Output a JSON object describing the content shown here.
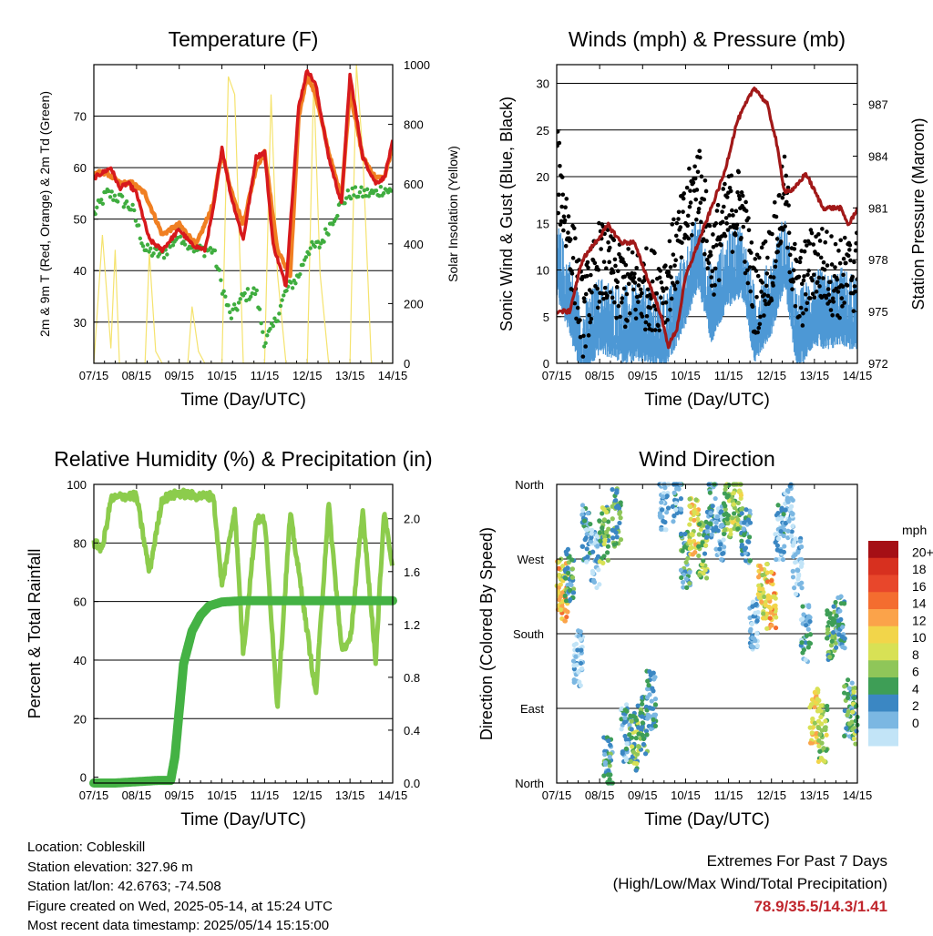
{
  "colors": {
    "temp_2m": "#d7191c",
    "temp_9m": "#f07f22",
    "dewpoint": "#3fad3f",
    "solar": "#f5e36e",
    "wind": "#4d98d5",
    "gust": "#000000",
    "pressure": "#a11818",
    "rh": "#8ccc4c",
    "precip": "#44b244"
  },
  "x_tick_labels": [
    "07/15",
    "08/15",
    "09/15",
    "10/15",
    "11/15",
    "12/15",
    "13/15",
    "14/15"
  ],
  "chart_data": [
    {
      "type": "line",
      "title": "Temperature (F)",
      "xlabel": "Time (Day/UTC)",
      "ylabel": "2m & 9m T (Red, Orange) & 2m Td (Green)",
      "ylabel_right": "Solar Insolation (Yellow)",
      "x": [
        "07/15",
        "08/15",
        "09/15",
        "10/15",
        "11/15",
        "12/15",
        "13/15",
        "14/15"
      ],
      "ylim": [
        22,
        80
      ],
      "yticks": [
        30,
        40,
        50,
        60,
        70
      ],
      "ylim_right": [
        0,
        1000
      ],
      "yticks_right": [
        0,
        200,
        400,
        600,
        800,
        1000
      ],
      "grid": true,
      "series": [
        {
          "key": "t2m",
          "color_key": "temp_2m",
          "x": [
            0,
            0.2,
            0.4,
            0.6,
            0.8,
            1.0,
            1.3,
            1.6,
            2.0,
            2.3,
            2.6,
            2.8,
            3.0,
            3.2,
            3.5,
            3.8,
            4.0,
            4.2,
            4.5,
            4.8,
            5.0,
            5.2,
            5.5,
            5.8,
            6.0,
            6.3,
            6.6,
            6.8,
            7.0
          ],
          "y": [
            58,
            59,
            60,
            56,
            57,
            55,
            46,
            44,
            48,
            45,
            44,
            52,
            64,
            55,
            46,
            62,
            63,
            45,
            37,
            72,
            79,
            76,
            62,
            53,
            78,
            62,
            57,
            58,
            65
          ]
        },
        {
          "key": "t9m",
          "color_key": "temp_9m",
          "x": [
            0,
            0.3,
            0.6,
            0.9,
            1.2,
            1.6,
            2.0,
            2.4,
            2.8,
            3.0,
            3.2,
            3.5,
            3.8,
            4.0,
            4.3,
            4.6,
            4.8,
            5.0,
            5.2,
            5.5,
            5.8,
            6.0,
            6.3,
            6.6,
            6.8,
            7.0
          ],
          "y": [
            59,
            59,
            57,
            57,
            55,
            47,
            49,
            45,
            53,
            63,
            56,
            49,
            60,
            63,
            44,
            39,
            70,
            78,
            74,
            63,
            54,
            75,
            62,
            58,
            58,
            64
          ]
        },
        {
          "key": "td2m",
          "color_key": "dewpoint",
          "x": [
            0,
            0.3,
            0.6,
            0.9,
            1.2,
            1.6,
            2.0,
            2.4,
            2.8,
            3.0,
            3.2,
            3.5,
            3.8,
            4.0,
            4.2,
            4.5,
            4.8,
            5.0,
            5.3,
            5.6,
            5.8,
            6.0,
            6.3,
            6.6,
            6.8,
            7.0
          ],
          "y": [
            51,
            55,
            54,
            52,
            44,
            43,
            47,
            44,
            44,
            37,
            31,
            35,
            36,
            26,
            29,
            36,
            39,
            44,
            45,
            50,
            53,
            55,
            55,
            55,
            56,
            55
          ]
        },
        {
          "key": "solar",
          "color_key": "solar",
          "axis": "right",
          "x": [
            0,
            0.2,
            0.4,
            0.5,
            0.6,
            1.2,
            1.3,
            1.45,
            1.6,
            2.2,
            2.3,
            2.45,
            2.6,
            3.0,
            3.15,
            3.3,
            3.5,
            4.0,
            4.15,
            4.3,
            4.5,
            5.0,
            5.15,
            5.3,
            5.5,
            6.0,
            6.15,
            6.3,
            6.5,
            7.0
          ],
          "y": [
            0,
            430,
            50,
            380,
            0,
            0,
            370,
            40,
            0,
            0,
            190,
            40,
            0,
            0,
            960,
            900,
            0,
            0,
            900,
            300,
            0,
            0,
            950,
            300,
            0,
            0,
            1000,
            700,
            0,
            0
          ]
        }
      ]
    },
    {
      "type": "scatter",
      "title": "Winds (mph) & Pressure (mb)",
      "xlabel": "Time (Day/UTC)",
      "ylabel": "Sonic Wind & Gust (Blue, Black)",
      "ylabel_right": "Station Pressure (Maroon)",
      "x": [
        "07/15",
        "08/15",
        "09/15",
        "10/15",
        "11/15",
        "12/15",
        "13/15",
        "14/15"
      ],
      "ylim": [
        0,
        32
      ],
      "yticks": [
        0,
        5,
        10,
        15,
        20,
        25,
        30
      ],
      "ylim_right": [
        972,
        989.3
      ],
      "yticks_right": [
        972,
        975,
        978,
        981,
        984,
        987
      ],
      "grid": true,
      "series": [
        {
          "key": "wind",
          "color_key": "wind",
          "x": [
            0,
            0.3,
            0.6,
            1.0,
            1.5,
            2.0,
            2.5,
            3.0,
            3.3,
            3.6,
            4.0,
            4.3,
            4.6,
            5.0,
            5.3,
            5.6,
            6.0,
            6.3,
            6.6,
            7.0
          ],
          "y": [
            12,
            8,
            3,
            6,
            5,
            5,
            4,
            9,
            13,
            7,
            11,
            12,
            5,
            8,
            13,
            4,
            7,
            6,
            7,
            6
          ]
        },
        {
          "key": "gust",
          "color_key": "gust",
          "x": [
            0,
            0.2,
            0.6,
            1.0,
            1.5,
            2.0,
            2.5,
            3.0,
            3.3,
            3.6,
            4.0,
            4.3,
            4.6,
            5.0,
            5.3,
            5.6,
            6.0,
            6.3,
            6.6,
            7.0
          ],
          "y": [
            22,
            17,
            6,
            12,
            9,
            9,
            9,
            16,
            21,
            12,
            17,
            18,
            8,
            12,
            19,
            8,
            12,
            11,
            10,
            11
          ]
        },
        {
          "key": "pressure",
          "color_key": "pressure",
          "axis": "right",
          "x": [
            0,
            0.3,
            0.6,
            0.9,
            1.2,
            1.5,
            1.8,
            2.1,
            2.4,
            2.6,
            2.8,
            3.0,
            3.3,
            3.6,
            3.9,
            4.2,
            4.4,
            4.6,
            4.9,
            5.1,
            5.3,
            5.5,
            5.8,
            6.0,
            6.2,
            6.4,
            6.6,
            6.8,
            7.0
          ],
          "y": [
            975,
            975,
            978,
            979,
            980,
            979,
            979,
            977,
            975,
            973,
            974,
            977,
            979,
            981,
            983,
            986,
            987,
            988,
            987,
            985,
            982,
            982,
            983,
            982,
            981,
            981,
            981,
            980,
            981
          ]
        }
      ]
    },
    {
      "type": "line",
      "title": "Relative Humidity (%) & Precipitation (in)",
      "xlabel": "Time (Day/UTC)",
      "ylabel": "Percent & Total Rainfall",
      "x": [
        "07/15",
        "08/15",
        "09/15",
        "10/15",
        "11/15",
        "12/15",
        "13/15",
        "14/15"
      ],
      "ylim": [
        -2,
        100
      ],
      "yticks": [
        0,
        20,
        40,
        60,
        80,
        100
      ],
      "ylim_right": [
        0.0,
        2.26
      ],
      "yticks_right": [
        "0.0",
        "0.4",
        "0.8",
        "1.2",
        "1.6",
        "2.0"
      ],
      "grid": true,
      "series": [
        {
          "key": "rh",
          "color_key": "rh",
          "x": [
            0,
            0.2,
            0.4,
            0.7,
            1.0,
            1.3,
            1.6,
            2.0,
            2.4,
            2.8,
            3.0,
            3.3,
            3.5,
            3.8,
            4.0,
            4.3,
            4.6,
            4.9,
            5.2,
            5.5,
            5.8,
            6.0,
            6.3,
            6.6,
            6.8,
            7.0
          ],
          "y": [
            80,
            78,
            95,
            96,
            96,
            70,
            95,
            97,
            96,
            96,
            65,
            92,
            42,
            88,
            88,
            24,
            90,
            60,
            28,
            93,
            44,
            46,
            91,
            40,
            91,
            70
          ]
        },
        {
          "key": "precip",
          "color_key": "precip",
          "axis": "right",
          "x": [
            0,
            0.5,
            1.0,
            1.5,
            1.8,
            1.9,
            2.0,
            2.1,
            2.3,
            2.5,
            2.7,
            3.0,
            3.5,
            4.0,
            5.0,
            6.0,
            7.0
          ],
          "y": [
            0.0,
            0.0,
            0.01,
            0.02,
            0.02,
            0.2,
            0.55,
            0.9,
            1.15,
            1.27,
            1.34,
            1.37,
            1.38,
            1.38,
            1.38,
            1.38,
            1.38
          ]
        }
      ]
    },
    {
      "type": "scatter",
      "title": "Wind Direction",
      "xlabel": "Time (Day/UTC)",
      "ylabel": "Direction (Colored By Speed)",
      "x": [
        "07/15",
        "08/15",
        "09/15",
        "10/15",
        "11/15",
        "12/15",
        "13/15",
        "14/15"
      ],
      "ylim": [
        0,
        360
      ],
      "yticks": [
        "North",
        "East",
        "South",
        "West",
        "North"
      ],
      "colorbar": {
        "title": "mph",
        "labels": [
          "20+",
          "18",
          "16",
          "14",
          "12",
          "10",
          "8",
          "6",
          "4",
          "2",
          "0"
        ],
        "colors": [
          "#a50f15",
          "#d7301f",
          "#e8472b",
          "#f46d2f",
          "#fba34a",
          "#f2d54a",
          "#d8e155",
          "#8fc659",
          "#3e9e56",
          "#3b87c3",
          "#7bb7e2",
          "#c2e4f7"
        ]
      },
      "series": [
        {
          "key": "direction",
          "x": [
            0.05,
            0.15,
            0.3,
            0.5,
            0.7,
            0.9,
            1.1,
            1.2,
            1.4,
            1.6,
            1.8,
            2.0,
            2.2,
            2.5,
            2.8,
            3.0,
            3.2,
            3.4,
            3.6,
            3.8,
            4.0,
            4.2,
            4.4,
            4.6,
            4.8,
            5.0,
            5.2,
            5.4,
            5.6,
            5.8,
            6.0,
            6.2,
            6.4,
            6.6,
            6.8,
            7.0
          ],
          "y": [
            235,
            230,
            250,
            150,
            300,
            270,
            300,
            20,
            320,
            60,
            50,
            70,
            100,
            340,
            350,
            270,
            310,
            280,
            330,
            300,
            330,
            340,
            300,
            190,
            230,
            220,
            300,
            330,
            260,
            180,
            80,
            60,
            180,
            190,
            90,
            80
          ],
          "speed": [
            12,
            14,
            6,
            2,
            4,
            3,
            8,
            6,
            7,
            4,
            8,
            7,
            5,
            3,
            4,
            6,
            12,
            8,
            5,
            3,
            9,
            10,
            6,
            3,
            12,
            14,
            4,
            3,
            2,
            4,
            12,
            10,
            7,
            5,
            6,
            8
          ]
        }
      ]
    }
  ],
  "info": {
    "location": "Location: Cobleskill",
    "elevation": "Station elevation: 327.96 m",
    "latlon": "Station lat/lon: 42.6763; -74.508",
    "created": "Figure created on Wed, 2025-05-14, at 15:24 UTC",
    "latest": "Most recent data timestamp: 2025/05/14 15:15:00"
  },
  "extremes": {
    "heading": "Extremes For Past 7 Days",
    "subheading": "(High/Low/Max Wind/Total Precipitation)",
    "values": "78.9/35.5/14.3/1.41"
  }
}
